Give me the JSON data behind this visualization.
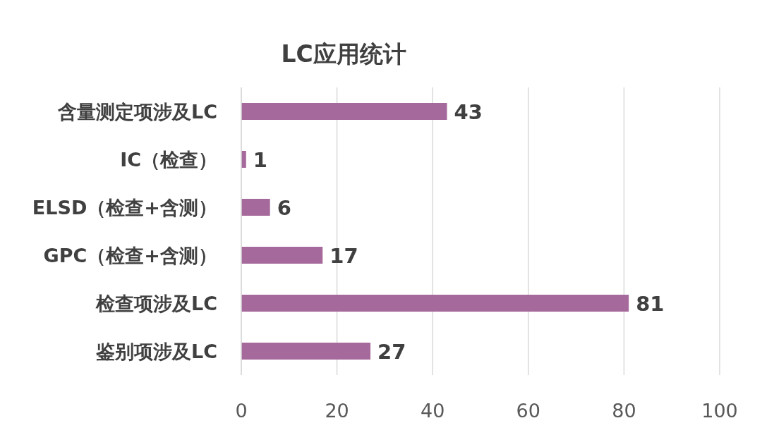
{
  "chart_data": {
    "type": "bar",
    "title": "LC应用统计",
    "orientation": "horizontal",
    "categories": [
      "含量测定项涉及LC",
      "IC（检查）",
      "ELSD（检查+含测）",
      "GPC（检查+含测）",
      "检查项涉及LC",
      "鉴别项涉及LC"
    ],
    "values": [
      43,
      1,
      6,
      17,
      81,
      27
    ],
    "color": "#a5699b",
    "xlim": [
      0,
      100
    ],
    "xticks": [
      0,
      20,
      40,
      60,
      80,
      100
    ],
    "grid": "x",
    "data_labels": true
  }
}
